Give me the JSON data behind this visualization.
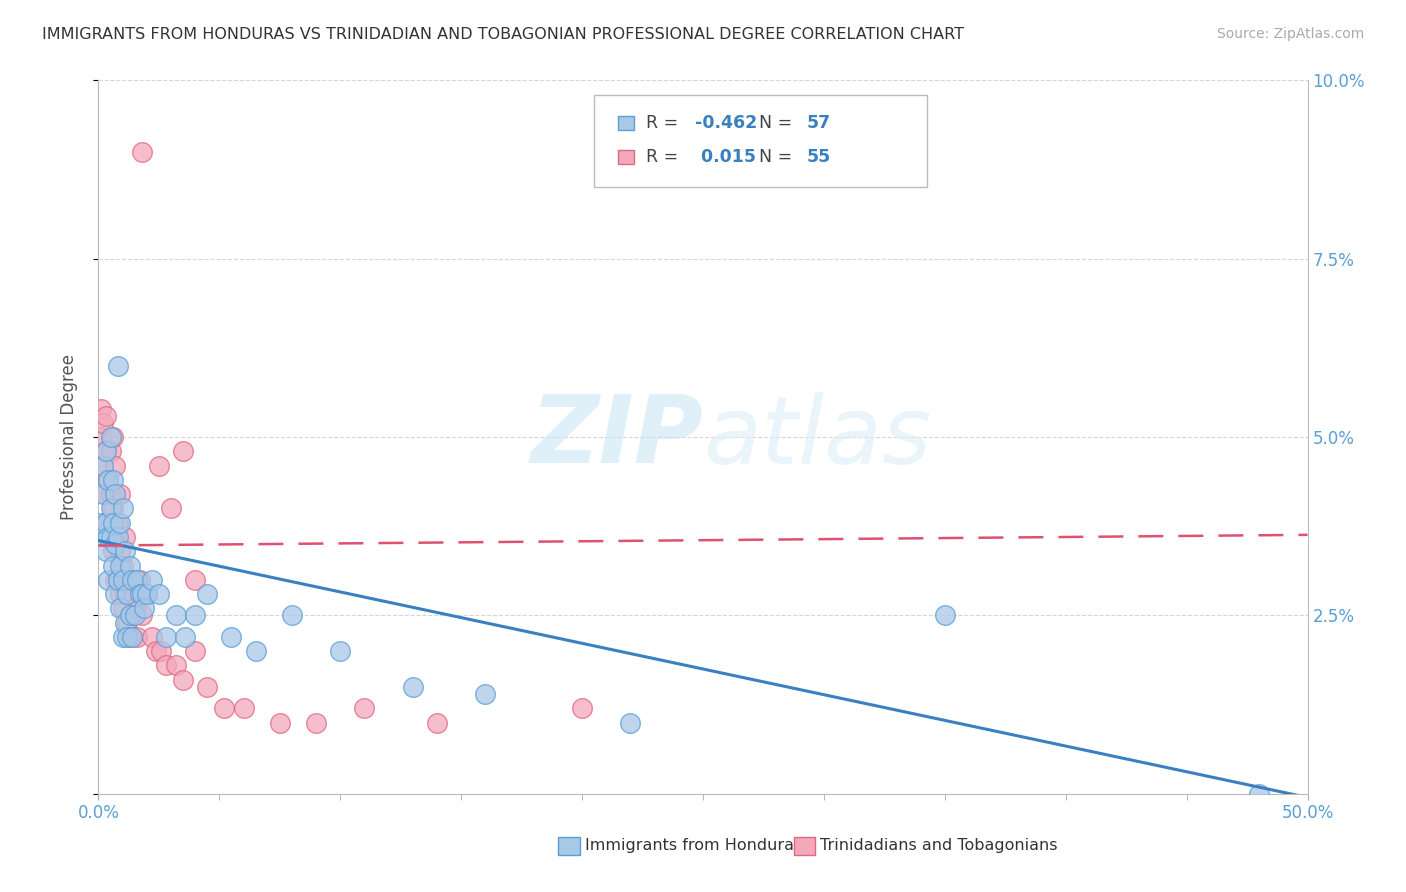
{
  "title": "IMMIGRANTS FROM HONDURAS VS TRINIDADIAN AND TOBAGONIAN PROFESSIONAL DEGREE CORRELATION CHART",
  "source": "Source: ZipAtlas.com",
  "ylabel": "Professional Degree",
  "ytick_labels": [
    "",
    "2.5%",
    "5.0%",
    "7.5%",
    "10.0%"
  ],
  "ytick_values": [
    0,
    0.025,
    0.05,
    0.075,
    0.1
  ],
  "xtick_major": [
    0.0,
    0.5
  ],
  "xtick_major_labels": [
    "0.0%",
    "50.0%"
  ],
  "xtick_minor": [
    0.05,
    0.1,
    0.15,
    0.2,
    0.25,
    0.3,
    0.35,
    0.4,
    0.45
  ],
  "legend_blue_R": "-0.462",
  "legend_blue_N": "57",
  "legend_pink_R": "0.015",
  "legend_pink_N": "55",
  "blue_color": "#a8c8e8",
  "pink_color": "#f4a8bc",
  "blue_edge_color": "#5a9fd4",
  "pink_edge_color": "#e06880",
  "blue_line_color": "#3a80c0",
  "pink_line_color": "#e05070",
  "watermark_color": "#daeef8",
  "blue_points_x": [
    0.001,
    0.002,
    0.002,
    0.003,
    0.003,
    0.003,
    0.004,
    0.004,
    0.004,
    0.005,
    0.005,
    0.005,
    0.006,
    0.006,
    0.006,
    0.007,
    0.007,
    0.007,
    0.008,
    0.008,
    0.008,
    0.009,
    0.009,
    0.009,
    0.01,
    0.01,
    0.01,
    0.011,
    0.011,
    0.012,
    0.012,
    0.013,
    0.013,
    0.014,
    0.014,
    0.015,
    0.016,
    0.017,
    0.018,
    0.019,
    0.02,
    0.022,
    0.025,
    0.028,
    0.032,
    0.036,
    0.04,
    0.045,
    0.055,
    0.065,
    0.08,
    0.1,
    0.13,
    0.16,
    0.22,
    0.35,
    0.48
  ],
  "blue_points_y": [
    0.038,
    0.042,
    0.046,
    0.034,
    0.038,
    0.048,
    0.03,
    0.036,
    0.044,
    0.036,
    0.04,
    0.05,
    0.032,
    0.038,
    0.044,
    0.028,
    0.035,
    0.042,
    0.03,
    0.036,
    0.06,
    0.026,
    0.032,
    0.038,
    0.022,
    0.03,
    0.04,
    0.024,
    0.034,
    0.022,
    0.028,
    0.025,
    0.032,
    0.022,
    0.03,
    0.025,
    0.03,
    0.028,
    0.028,
    0.026,
    0.028,
    0.03,
    0.028,
    0.022,
    0.025,
    0.022,
    0.025,
    0.028,
    0.022,
    0.02,
    0.025,
    0.02,
    0.015,
    0.014,
    0.01,
    0.025,
    0.0
  ],
  "pink_points_x": [
    0.001,
    0.001,
    0.002,
    0.002,
    0.003,
    0.003,
    0.003,
    0.004,
    0.004,
    0.005,
    0.005,
    0.006,
    0.006,
    0.006,
    0.007,
    0.007,
    0.007,
    0.008,
    0.008,
    0.009,
    0.009,
    0.009,
    0.01,
    0.01,
    0.011,
    0.011,
    0.012,
    0.012,
    0.013,
    0.014,
    0.015,
    0.016,
    0.017,
    0.018,
    0.02,
    0.022,
    0.024,
    0.026,
    0.028,
    0.032,
    0.035,
    0.04,
    0.045,
    0.052,
    0.06,
    0.075,
    0.09,
    0.11,
    0.14,
    0.2,
    0.025,
    0.03,
    0.035,
    0.04,
    0.018
  ],
  "pink_points_y": [
    0.05,
    0.054,
    0.046,
    0.052,
    0.042,
    0.048,
    0.053,
    0.038,
    0.044,
    0.042,
    0.048,
    0.034,
    0.04,
    0.05,
    0.03,
    0.036,
    0.046,
    0.03,
    0.038,
    0.028,
    0.034,
    0.042,
    0.026,
    0.032,
    0.028,
    0.036,
    0.024,
    0.03,
    0.022,
    0.025,
    0.026,
    0.022,
    0.03,
    0.025,
    0.028,
    0.022,
    0.02,
    0.02,
    0.018,
    0.018,
    0.016,
    0.02,
    0.015,
    0.012,
    0.012,
    0.01,
    0.01,
    0.012,
    0.01,
    0.012,
    0.046,
    0.04,
    0.048,
    0.03,
    0.09
  ],
  "blue_intercept": 0.0355,
  "blue_slope": -0.072,
  "pink_intercept": 0.0348,
  "pink_slope": 0.003
}
